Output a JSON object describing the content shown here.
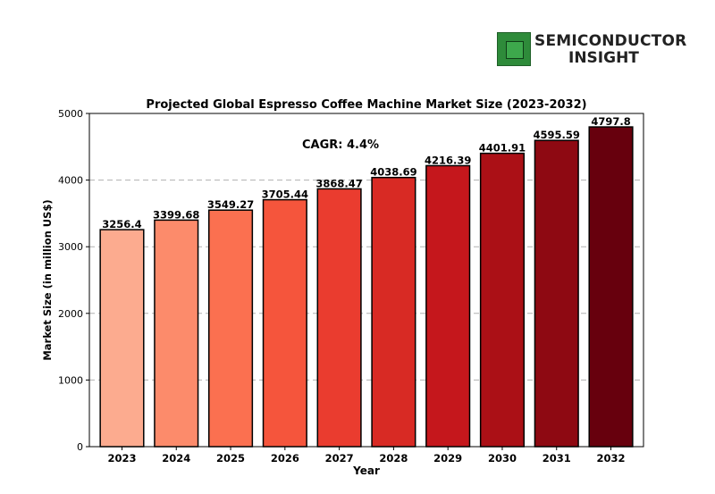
{
  "logo": {
    "line1": "SEMICONDUCTOR",
    "line2": "INSIGHT",
    "icon": "chip-icon"
  },
  "chart_data": {
    "type": "bar",
    "title": "Projected Global Espresso Coffee Machine Market Size (2023-2032)",
    "xlabel": "Year",
    "ylabel": "Market Size (in million US$)",
    "annotation": "CAGR: 4.4%",
    "categories": [
      "2023",
      "2024",
      "2025",
      "2026",
      "2027",
      "2028",
      "2029",
      "2030",
      "2031",
      "2032"
    ],
    "values": [
      3256.4,
      3399.68,
      3549.27,
      3705.44,
      3868.47,
      4038.69,
      4216.39,
      4401.91,
      4595.59,
      4797.8
    ],
    "value_labels": [
      "3256.4",
      "3399.68",
      "3549.27",
      "3705.44",
      "3868.47",
      "4038.69",
      "4216.39",
      "4401.91",
      "4595.59",
      "4797.8"
    ],
    "colors": [
      "#fcab8f",
      "#fc8b6b",
      "#fb7050",
      "#f5553c",
      "#ea3c2f",
      "#d82a24",
      "#c5171c",
      "#ab1016",
      "#8e0912",
      "#67000d"
    ],
    "yticks": [
      0,
      1000,
      2000,
      3000,
      4000,
      5000
    ],
    "ylim": [
      0,
      5000
    ],
    "grid": "horizontal-dashed"
  }
}
